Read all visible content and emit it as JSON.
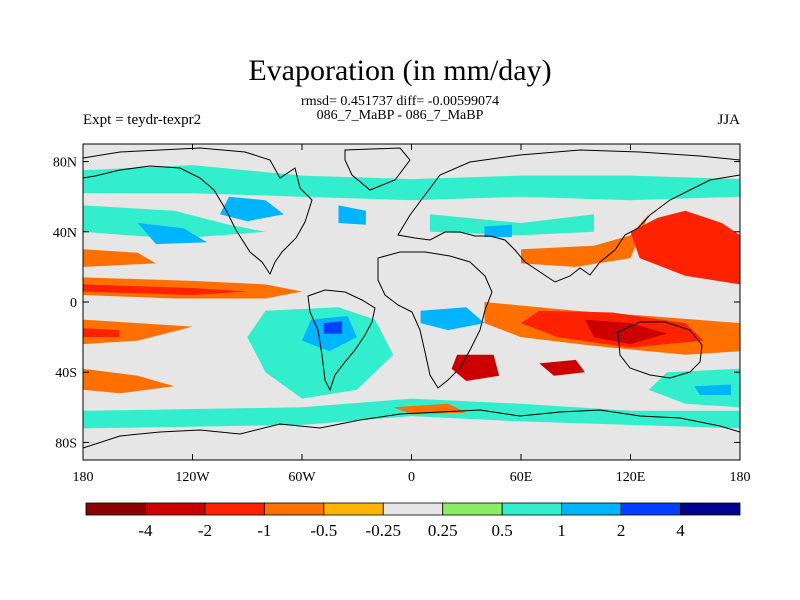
{
  "header": {
    "title": "Evaporation (in mm/day)",
    "stats_line": "rmsd= 0.451737 diff= -0.00599074",
    "experiment_line": "086_7_MaBP - 086_7_MaBP",
    "left_label": "Expt = teydr-texpr2",
    "right_label": "JJA"
  },
  "map": {
    "lon_range": [
      -180,
      180
    ],
    "lat_range": [
      -90,
      90
    ],
    "lat_ticks": [
      {
        "value": 80,
        "label": "80N"
      },
      {
        "value": 40,
        "label": "40N"
      },
      {
        "value": 0,
        "label": "0"
      },
      {
        "value": -40,
        "label": "40S"
      },
      {
        "value": -80,
        "label": "80S"
      }
    ],
    "lon_ticks": [
      {
        "value": -180,
        "label": "180"
      },
      {
        "value": -120,
        "label": "120W"
      },
      {
        "value": -60,
        "label": "60W"
      },
      {
        "value": 0,
        "label": "0"
      },
      {
        "value": 60,
        "label": "60E"
      },
      {
        "value": 120,
        "label": "120E"
      },
      {
        "value": 180,
        "label": "180"
      }
    ],
    "background_color": "#e6e6e6"
  },
  "colorbar": {
    "colors": [
      "#8b0000",
      "#cc0000",
      "#ff2200",
      "#ff7000",
      "#ffb400",
      "#e6e6e6",
      "#88ee66",
      "#33eecc",
      "#00b4ff",
      "#0040ff",
      "#000090"
    ],
    "labels": [
      "-4",
      "-2",
      "-1",
      "-0.5",
      "-0.25",
      "0.25",
      "0.5",
      "1",
      "2",
      "4"
    ]
  },
  "chart_data": {
    "type": "heatmap",
    "title": "Evaporation (in mm/day)",
    "units": "mm/day",
    "season": "JJA",
    "contour_levels": [
      -4,
      -2,
      -1,
      -0.5,
      -0.25,
      0.25,
      0.5,
      1,
      2,
      4
    ],
    "regions": [
      {
        "level": 0.5,
        "points": [
          [
            -180,
            75
          ],
          [
            -120,
            78
          ],
          [
            -60,
            72
          ],
          [
            0,
            70
          ],
          [
            60,
            72
          ],
          [
            120,
            72
          ],
          [
            180,
            70
          ],
          [
            180,
            60
          ],
          [
            120,
            58
          ],
          [
            60,
            60
          ],
          [
            0,
            58
          ],
          [
            -60,
            60
          ],
          [
            -120,
            62
          ],
          [
            -180,
            62
          ]
        ]
      },
      {
        "level": 0.5,
        "points": [
          [
            -180,
            55
          ],
          [
            -130,
            52
          ],
          [
            -100,
            44
          ],
          [
            -80,
            40
          ],
          [
            -130,
            36
          ],
          [
            -180,
            40
          ]
        ]
      },
      {
        "level": 1,
        "points": [
          [
            -100,
            60
          ],
          [
            -80,
            58
          ],
          [
            -70,
            50
          ],
          [
            -90,
            46
          ],
          [
            -105,
            50
          ]
        ]
      },
      {
        "level": 1,
        "points": [
          [
            -150,
            45
          ],
          [
            -125,
            42
          ],
          [
            -112,
            34
          ],
          [
            -140,
            33
          ]
        ]
      },
      {
        "level": 1,
        "points": [
          [
            -40,
            55
          ],
          [
            -25,
            52
          ],
          [
            -25,
            44
          ],
          [
            -40,
            45
          ]
        ]
      },
      {
        "level": 0.5,
        "points": [
          [
            10,
            50
          ],
          [
            60,
            45
          ],
          [
            100,
            50
          ],
          [
            100,
            40
          ],
          [
            60,
            38
          ],
          [
            10,
            40
          ]
        ]
      },
      {
        "level": 1,
        "points": [
          [
            40,
            43
          ],
          [
            55,
            44
          ],
          [
            55,
            37
          ],
          [
            40,
            37
          ]
        ]
      },
      {
        "level": -0.5,
        "points": [
          [
            -180,
            30
          ],
          [
            -150,
            28
          ],
          [
            -140,
            22
          ],
          [
            -180,
            20
          ]
        ]
      },
      {
        "level": -0.5,
        "points": [
          [
            -180,
            14
          ],
          [
            -120,
            12
          ],
          [
            -80,
            10
          ],
          [
            -60,
            6
          ],
          [
            -80,
            2
          ],
          [
            -130,
            2
          ],
          [
            -180,
            4
          ]
        ]
      },
      {
        "level": -1,
        "points": [
          [
            -180,
            10
          ],
          [
            -120,
            8
          ],
          [
            -90,
            6
          ],
          [
            -120,
            4
          ],
          [
            -180,
            6
          ]
        ]
      },
      {
        "level": -0.5,
        "points": [
          [
            -180,
            -10
          ],
          [
            -150,
            -12
          ],
          [
            -120,
            -14
          ],
          [
            -150,
            -22
          ],
          [
            -180,
            -24
          ]
        ]
      },
      {
        "level": -1,
        "points": [
          [
            -180,
            -15
          ],
          [
            -160,
            -16
          ],
          [
            -160,
            -20
          ],
          [
            -180,
            -20
          ]
        ]
      },
      {
        "level": -0.5,
        "points": [
          [
            -180,
            -38
          ],
          [
            -150,
            -42
          ],
          [
            -130,
            -48
          ],
          [
            -160,
            -52
          ],
          [
            -180,
            -50
          ]
        ]
      },
      {
        "level": 0.5,
        "points": [
          [
            -80,
            -5
          ],
          [
            -40,
            -3
          ],
          [
            -20,
            -10
          ],
          [
            -10,
            -30
          ],
          [
            -30,
            -50
          ],
          [
            -60,
            -55
          ],
          [
            -80,
            -40
          ],
          [
            -90,
            -20
          ]
        ]
      },
      {
        "level": 1,
        "points": [
          [
            -55,
            -10
          ],
          [
            -35,
            -8
          ],
          [
            -30,
            -20
          ],
          [
            -45,
            -28
          ],
          [
            -60,
            -22
          ]
        ]
      },
      {
        "level": 2,
        "points": [
          [
            -48,
            -12
          ],
          [
            -38,
            -11
          ],
          [
            -38,
            -18
          ],
          [
            -48,
            -18
          ]
        ]
      },
      {
        "level": 1,
        "points": [
          [
            5,
            -5
          ],
          [
            30,
            -3
          ],
          [
            40,
            -12
          ],
          [
            20,
            -16
          ],
          [
            5,
            -12
          ]
        ]
      },
      {
        "level": -0.5,
        "points": [
          [
            60,
            30
          ],
          [
            100,
            32
          ],
          [
            120,
            38
          ],
          [
            130,
            50
          ],
          [
            120,
            25
          ],
          [
            90,
            20
          ],
          [
            60,
            22
          ]
        ]
      },
      {
        "level": -1,
        "points": [
          [
            120,
            40
          ],
          [
            135,
            48
          ],
          [
            150,
            52
          ],
          [
            170,
            45
          ],
          [
            180,
            38
          ],
          [
            180,
            10
          ],
          [
            150,
            15
          ],
          [
            125,
            25
          ]
        ]
      },
      {
        "level": -0.5,
        "points": [
          [
            40,
            0
          ],
          [
            90,
            -5
          ],
          [
            130,
            -8
          ],
          [
            180,
            -12
          ],
          [
            180,
            -28
          ],
          [
            150,
            -30
          ],
          [
            100,
            -25
          ],
          [
            60,
            -20
          ],
          [
            40,
            -12
          ]
        ]
      },
      {
        "level": -1,
        "points": [
          [
            70,
            -5
          ],
          [
            110,
            -6
          ],
          [
            150,
            -12
          ],
          [
            160,
            -22
          ],
          [
            120,
            -26
          ],
          [
            80,
            -20
          ],
          [
            60,
            -12
          ]
        ]
      },
      {
        "level": -2,
        "points": [
          [
            95,
            -10
          ],
          [
            120,
            -12
          ],
          [
            140,
            -18
          ],
          [
            120,
            -24
          ],
          [
            100,
            -20
          ]
        ]
      },
      {
        "level": -2,
        "points": [
          [
            25,
            -30
          ],
          [
            45,
            -30
          ],
          [
            48,
            -42
          ],
          [
            30,
            -45
          ],
          [
            22,
            -38
          ]
        ]
      },
      {
        "level": -2,
        "points": [
          [
            70,
            -35
          ],
          [
            90,
            -33
          ],
          [
            95,
            -40
          ],
          [
            78,
            -42
          ]
        ]
      },
      {
        "level": 0.5,
        "points": [
          [
            140,
            -40
          ],
          [
            180,
            -38
          ],
          [
            180,
            -60
          ],
          [
            150,
            -58
          ],
          [
            130,
            -50
          ]
        ]
      },
      {
        "level": 1,
        "points": [
          [
            155,
            -48
          ],
          [
            175,
            -47
          ],
          [
            175,
            -53
          ],
          [
            158,
            -53
          ]
        ]
      },
      {
        "level": 0.5,
        "points": [
          [
            -180,
            -62
          ],
          [
            -60,
            -60
          ],
          [
            0,
            -55
          ],
          [
            60,
            -58
          ],
          [
            120,
            -62
          ],
          [
            180,
            -62
          ],
          [
            180,
            -72
          ],
          [
            120,
            -70
          ],
          [
            60,
            -68
          ],
          [
            0,
            -65
          ],
          [
            -60,
            -70
          ],
          [
            -180,
            -72
          ]
        ]
      },
      {
        "level": -0.5,
        "points": [
          [
            -10,
            -60
          ],
          [
            20,
            -58
          ],
          [
            30,
            -63
          ],
          [
            0,
            -64
          ]
        ]
      }
    ]
  }
}
